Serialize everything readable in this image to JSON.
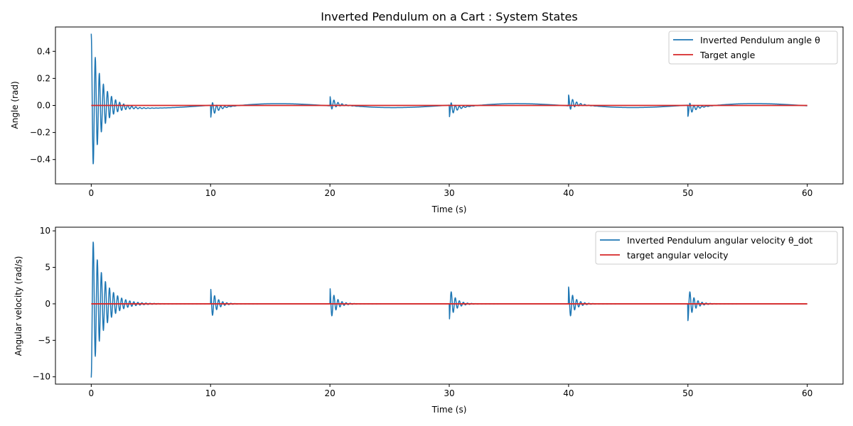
{
  "chart_data": [
    {
      "type": "line",
      "title": "Inverted Pendulum on a Cart : System States",
      "xlabel": "Time (s)",
      "ylabel": "Angle (rad)",
      "xlim": [
        -3,
        63
      ],
      "ylim": [
        -0.58,
        0.58
      ],
      "xticks": [
        0,
        10,
        20,
        30,
        40,
        50,
        60
      ],
      "yticks": [
        -0.4,
        -0.2,
        0.0,
        0.2,
        0.4
      ],
      "ytick_labels": [
        "−0.4",
        "−0.2",
        "0.0",
        "0.2",
        "0.4"
      ],
      "legend_position": "upper-right",
      "grid": false,
      "series": [
        {
          "name": "Inverted Pendulum angle θ",
          "color": "#1f77b4",
          "model": "damped oscillation after each disturbance plus slow drift",
          "x_range": [
            0,
            60
          ],
          "events": [
            {
              "t": 0,
              "amplitude": 0.53,
              "period": 0.34,
              "decay_time": 0.85,
              "drift": 0.0
            },
            {
              "t": 10,
              "amplitude": -0.065,
              "period": 0.34,
              "decay_time": 0.5,
              "drift": -0.03
            },
            {
              "t": 20,
              "amplitude": 0.055,
              "period": 0.34,
              "decay_time": 0.5,
              "drift": 0.018
            },
            {
              "t": 30,
              "amplitude": -0.062,
              "period": 0.34,
              "decay_time": 0.5,
              "drift": -0.03
            },
            {
              "t": 40,
              "amplitude": 0.06,
              "period": 0.34,
              "decay_time": 0.5,
              "drift": 0.02
            },
            {
              "t": 50,
              "amplitude": -0.055,
              "period": 0.34,
              "decay_time": 0.5,
              "drift": -0.028
            }
          ],
          "slow_wave": {
            "amplitude": 0.02,
            "period": 20,
            "peak_at": 14.8
          }
        },
        {
          "name": "Target angle",
          "color": "#d62728",
          "x": [
            0,
            60
          ],
          "y": [
            0,
            0
          ]
        }
      ]
    },
    {
      "type": "line",
      "title": "",
      "xlabel": "Time (s)",
      "ylabel": "Angular velocity (rad/s)",
      "xlim": [
        -3,
        63
      ],
      "ylim": [
        -11,
        10.5
      ],
      "xticks": [
        0,
        10,
        20,
        30,
        40,
        50,
        60
      ],
      "yticks": [
        -10,
        -5,
        0,
        5,
        10
      ],
      "ytick_labels": [
        "−10",
        "−5",
        "0",
        "5",
        "10"
      ],
      "legend_position": "upper-right",
      "grid": false,
      "series": [
        {
          "name": "Inverted Pendulum angular velocity θ_dot",
          "color": "#1f77b4",
          "model": "damped oscillation after each disturbance",
          "x_range": [
            0,
            60
          ],
          "events": [
            {
              "t": 0,
              "amplitude": -10.1,
              "period": 0.34,
              "decay_time": 1.0
            },
            {
              "t": 10,
              "amplitude": 2.2,
              "period": 0.34,
              "decay_time": 0.5
            },
            {
              "t": 20,
              "amplitude": 2.3,
              "period": 0.34,
              "decay_time": 0.5
            },
            {
              "t": 30,
              "amplitude": -2.3,
              "period": 0.34,
              "decay_time": 0.5
            },
            {
              "t": 40,
              "amplitude": 2.3,
              "period": 0.34,
              "decay_time": 0.5
            },
            {
              "t": 50,
              "amplitude": -2.3,
              "period": 0.34,
              "decay_time": 0.5
            }
          ]
        },
        {
          "name": "target angular velocity",
          "color": "#d62728",
          "x": [
            0,
            60
          ],
          "y": [
            0,
            0
          ]
        }
      ]
    }
  ]
}
